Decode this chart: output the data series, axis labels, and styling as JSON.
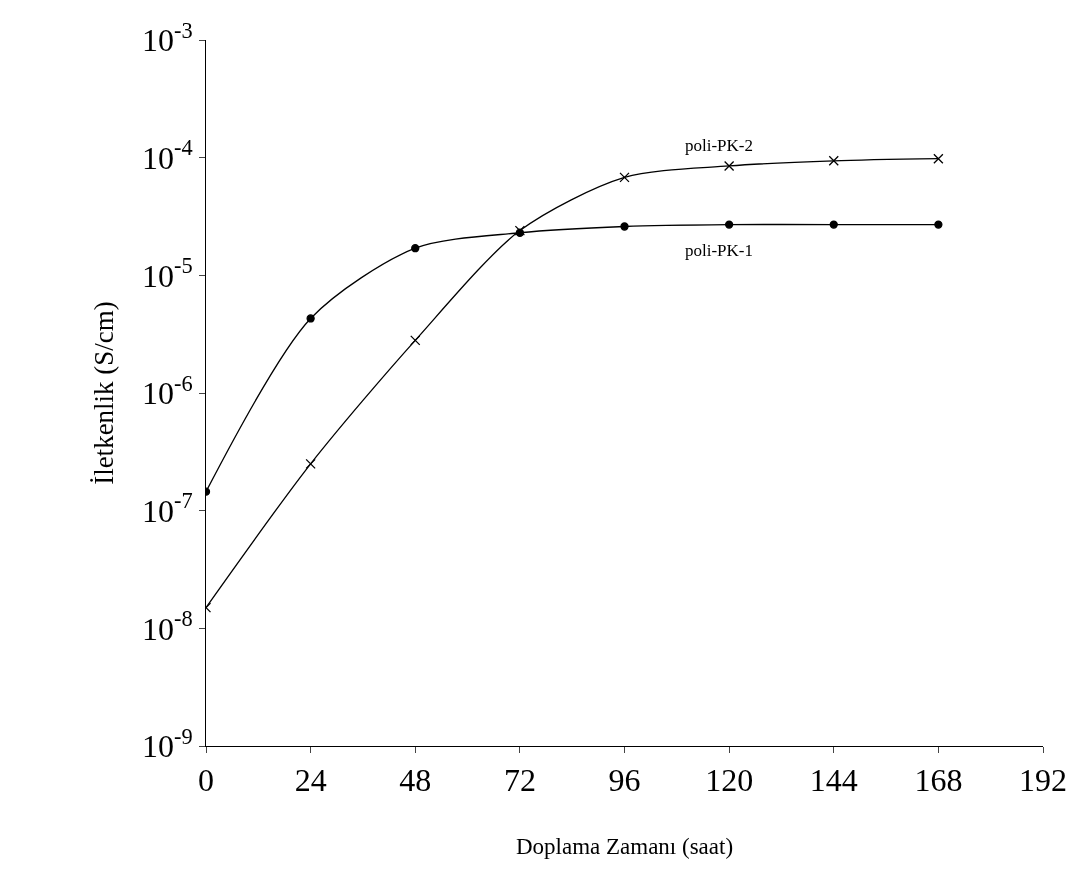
{
  "chart_data": {
    "type": "line",
    "xlabel": "Doplama Zamanı (saat)",
    "ylabel": "İletkenlik (S/cm)",
    "x": [
      0,
      24,
      48,
      72,
      96,
      120,
      144,
      168
    ],
    "series": [
      {
        "name": "poli-PK-1",
        "color": "#000000",
        "marker": "circle",
        "values": [
          1.45e-07,
          4.3e-06,
          1.7e-05,
          2.3e-05,
          2.6e-05,
          2.7e-05,
          2.7e-05,
          2.7e-05
        ]
      },
      {
        "name": "poli-PK-2",
        "color": "#000000",
        "marker": "cross",
        "values": [
          1.5e-08,
          2.5e-07,
          2.8e-06,
          2.4e-05,
          6.8e-05,
          8.5e-05,
          9.4e-05,
          9.8e-05
        ]
      }
    ],
    "log": "y",
    "xlim": [
      0,
      192
    ],
    "xticks": [
      0,
      24,
      48,
      72,
      96,
      120,
      144,
      168,
      192
    ],
    "ylim": [
      1e-09,
      0.001
    ],
    "yticks": [
      {
        "value": 1e-09,
        "label": "10$^{-9}$"
      },
      {
        "value": 1e-08,
        "label": "10$^{-8}$"
      },
      {
        "value": 1e-07,
        "label": "10$^{-7}$"
      },
      {
        "value": 1e-06,
        "label": "10$^{-6}$"
      },
      {
        "value": 1e-05,
        "label": "10$^{-5}$"
      },
      {
        "value": 0.0001,
        "label": "10$^{-4}$"
      },
      {
        "value": 0.001,
        "label": "10$^{-3}$"
      }
    ],
    "grid": false,
    "legend": false,
    "line_style": "solid"
  }
}
